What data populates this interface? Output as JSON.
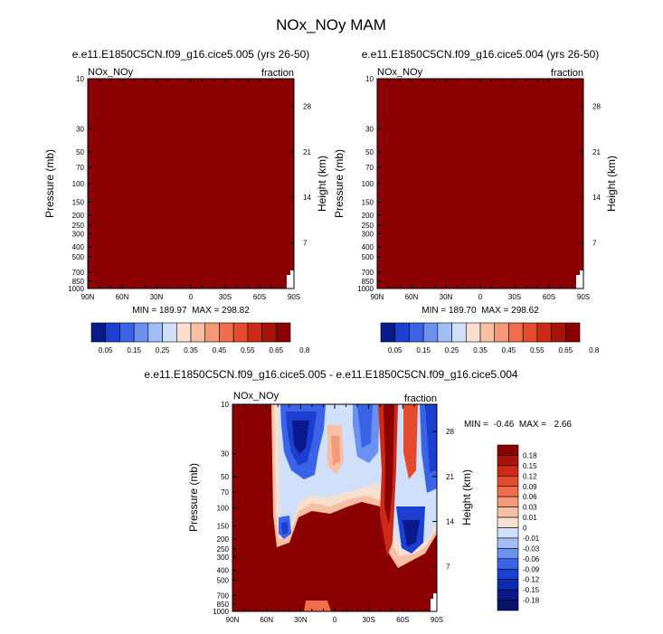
{
  "figure": {
    "title": "NOx_NOy MAM"
  },
  "chart_data": [
    {
      "type": "heatmap",
      "title": "e.e11.E1850C5CN.f09_g16.cice5.005 (yrs 26-50)",
      "left_label": "NOx_NOy",
      "right_label": "fraction",
      "ylabel": "Pressure (mb)",
      "ylabel_right": "Height (km)",
      "x_ticks": [
        "90N",
        "60N",
        "30N",
        "0",
        "30S",
        "60S",
        "90S"
      ],
      "y_ticks": [
        "10",
        "30",
        "50",
        "70",
        "100",
        "150",
        "200",
        "250",
        "300",
        "400",
        "500",
        "700",
        "850",
        "1000"
      ],
      "y_ticks_right": [
        "28",
        "21",
        "14",
        "7"
      ],
      "stats": "MIN = 189.97  MAX = 298.82",
      "fill_color": "#8b0000",
      "colorbar": {
        "labels": [
          "0.05",
          "0.15",
          "0.25",
          "0.35",
          "0.45",
          "0.55",
          "0.65",
          "0.8"
        ],
        "colors": [
          "#0a1a8c",
          "#1b3fd1",
          "#3b63e8",
          "#6a90f0",
          "#a2bff5",
          "#d0e0fa",
          "#f8e0d0",
          "#f7c0a4",
          "#f49a78",
          "#ee6e4c",
          "#e44a2c",
          "#cc2a16",
          "#a6140a",
          "#8b0000"
        ]
      }
    },
    {
      "type": "heatmap",
      "title": "e.e11.E1850C5CN.f09_g16.cice5.004 (yrs 26-50)",
      "left_label": "NOx_NOy",
      "right_label": "fraction",
      "ylabel": "Pressure (mb)",
      "ylabel_right": "Height (km)",
      "x_ticks": [
        "90N",
        "60N",
        "30N",
        "0",
        "30S",
        "60S",
        "90S"
      ],
      "y_ticks": [
        "10",
        "30",
        "50",
        "70",
        "100",
        "150",
        "200",
        "250",
        "300",
        "400",
        "500",
        "700",
        "850",
        "1000"
      ],
      "y_ticks_right": [
        "28",
        "21",
        "14",
        "7"
      ],
      "stats": "MIN = 189.70  MAX = 298.62",
      "fill_color": "#8b0000",
      "colorbar": {
        "labels": [
          "0.05",
          "0.15",
          "0.25",
          "0.35",
          "0.45",
          "0.55",
          "0.65",
          "0.8"
        ],
        "colors": [
          "#0a1a8c",
          "#1b3fd1",
          "#3b63e8",
          "#6a90f0",
          "#a2bff5",
          "#d0e0fa",
          "#f8e0d0",
          "#f7c0a4",
          "#f49a78",
          "#ee6e4c",
          "#e44a2c",
          "#cc2a16",
          "#a6140a",
          "#8b0000"
        ]
      }
    },
    {
      "type": "heatmap",
      "title": "e.e11.E1850C5CN.f09_g16.cice5.005 - e.e11.E1850C5CN.f09_g16.cice5.004",
      "left_label": "NOx_NOy",
      "right_label": "fraction",
      "ylabel": "Pressure (mb)",
      "ylabel_right": "Height (km)",
      "x_ticks": [
        "90N",
        "60N",
        "30N",
        "0",
        "30S",
        "60S",
        "90S"
      ],
      "y_ticks": [
        "10",
        "30",
        "50",
        "70",
        "100",
        "150",
        "200",
        "250",
        "300",
        "400",
        "500",
        "700",
        "850",
        "1000"
      ],
      "y_ticks_right": [
        "28",
        "21",
        "14",
        "7"
      ],
      "stats": "MIN =  -0.46  MAX =   2.66",
      "colorbar": {
        "labels": [
          "0.18",
          "0.15",
          "0.12",
          "0.09",
          "0.06",
          "0.03",
          "0.01",
          "0",
          "-0.01",
          "-0.03",
          "-0.06",
          "-0.09",
          "-0.12",
          "-0.15",
          "-0.18"
        ],
        "colors": [
          "#8b0000",
          "#a6140a",
          "#cc2a16",
          "#e44a2c",
          "#ee6e4c",
          "#f49a78",
          "#f7c0a4",
          "#f8e0d0",
          "#d0e0fa",
          "#a2bff5",
          "#6a90f0",
          "#3b63e8",
          "#1b3fd1",
          "#0d2bb0",
          "#0a1a8c",
          "#08126a"
        ]
      }
    }
  ]
}
